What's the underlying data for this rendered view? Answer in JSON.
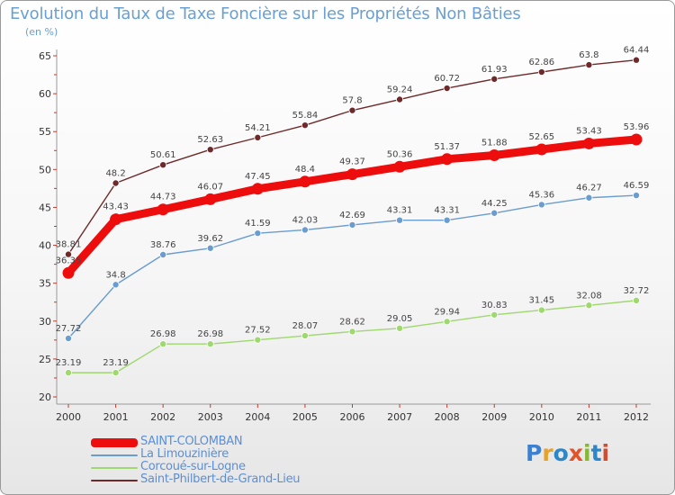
{
  "title": "Evolution du Taux de Taxe Foncière sur les Propriétés Non Bâties",
  "unit_label": "(en %)",
  "logo": {
    "text": "Proxiti",
    "letter_colors": [
      "#3f7fcf",
      "#e6a32a",
      "#2c87c9",
      "#e0532b",
      "#86b832",
      "#2c87c9",
      "#d54b2f"
    ]
  },
  "chart_data": {
    "type": "line",
    "x": [
      "2000",
      "2001",
      "2002",
      "2003",
      "2004",
      "2005",
      "2006",
      "2007",
      "2008",
      "2009",
      "2010",
      "2011",
      "2012"
    ],
    "ylim": [
      20,
      65
    ],
    "yticks": [
      20,
      25,
      30,
      35,
      40,
      45,
      50,
      55,
      60,
      65
    ],
    "grid": false,
    "legend_position": "bottom-left",
    "series": [
      {
        "name": "Saint-Philbert-de-Grand-Lieu",
        "color": "#6e2a2a",
        "values": [
          38.81,
          48.2,
          50.61,
          52.63,
          54.21,
          55.84,
          57.8,
          59.24,
          60.72,
          61.93,
          62.86,
          63.8,
          64.44
        ],
        "labels": [
          "38.81",
          "48.2",
          "50.61",
          "52.63",
          "54.21",
          "55.84",
          "57.8",
          "59.24",
          "60.72",
          "61.93",
          "62.86",
          "63.8",
          "64.44"
        ]
      },
      {
        "name": "SAINT-COLOMBAN",
        "color": "#ee0d0d",
        "values": [
          36.35,
          43.43,
          44.73,
          46.07,
          47.45,
          48.4,
          49.37,
          50.36,
          51.37,
          51.88,
          52.65,
          53.43,
          53.96
        ],
        "labels": [
          "36.35",
          "43.43",
          "44.73",
          "46.07",
          "47.45",
          "48.4",
          "49.37",
          "50.36",
          "51.37",
          "51.88",
          "52.65",
          "53.43",
          "53.96"
        ]
      },
      {
        "name": "La Limouzinière",
        "color": "#6a9ccf",
        "values": [
          27.72,
          34.8,
          38.76,
          39.62,
          41.59,
          42.03,
          42.69,
          43.31,
          43.31,
          44.25,
          45.36,
          46.27,
          46.59
        ],
        "labels": [
          "27.72",
          "34.8",
          "38.76",
          "39.62",
          "41.59",
          "42.03",
          "42.69",
          "43.31",
          "43.31",
          "44.25",
          "45.36",
          "46.27",
          "46.59"
        ]
      },
      {
        "name": "Corcoué-sur-Logne",
        "color": "#9ed86e",
        "values": [
          23.19,
          23.19,
          26.98,
          26.98,
          27.52,
          28.07,
          28.62,
          29.05,
          29.94,
          30.83,
          31.45,
          32.08,
          32.72
        ],
        "labels": [
          "23.19",
          "23.19",
          "26.98",
          "26.98",
          "27.52",
          "28.07",
          "28.62",
          "29.05",
          "29.94",
          "30.83",
          "31.45",
          "32.08",
          "32.72"
        ]
      }
    ]
  },
  "legend": [
    {
      "label": "SAINT-COLOMBAN",
      "color": "#ee0d0d",
      "weight": "thick"
    },
    {
      "label": "La Limouzinière",
      "color": "#6a9ccf",
      "weight": "thin"
    },
    {
      "label": "Corcoué-sur-Logne",
      "color": "#9ed86e",
      "weight": "thin"
    },
    {
      "label": "Saint-Philbert-de-Grand-Lieu",
      "color": "#6e2a2a",
      "weight": "thin"
    }
  ]
}
